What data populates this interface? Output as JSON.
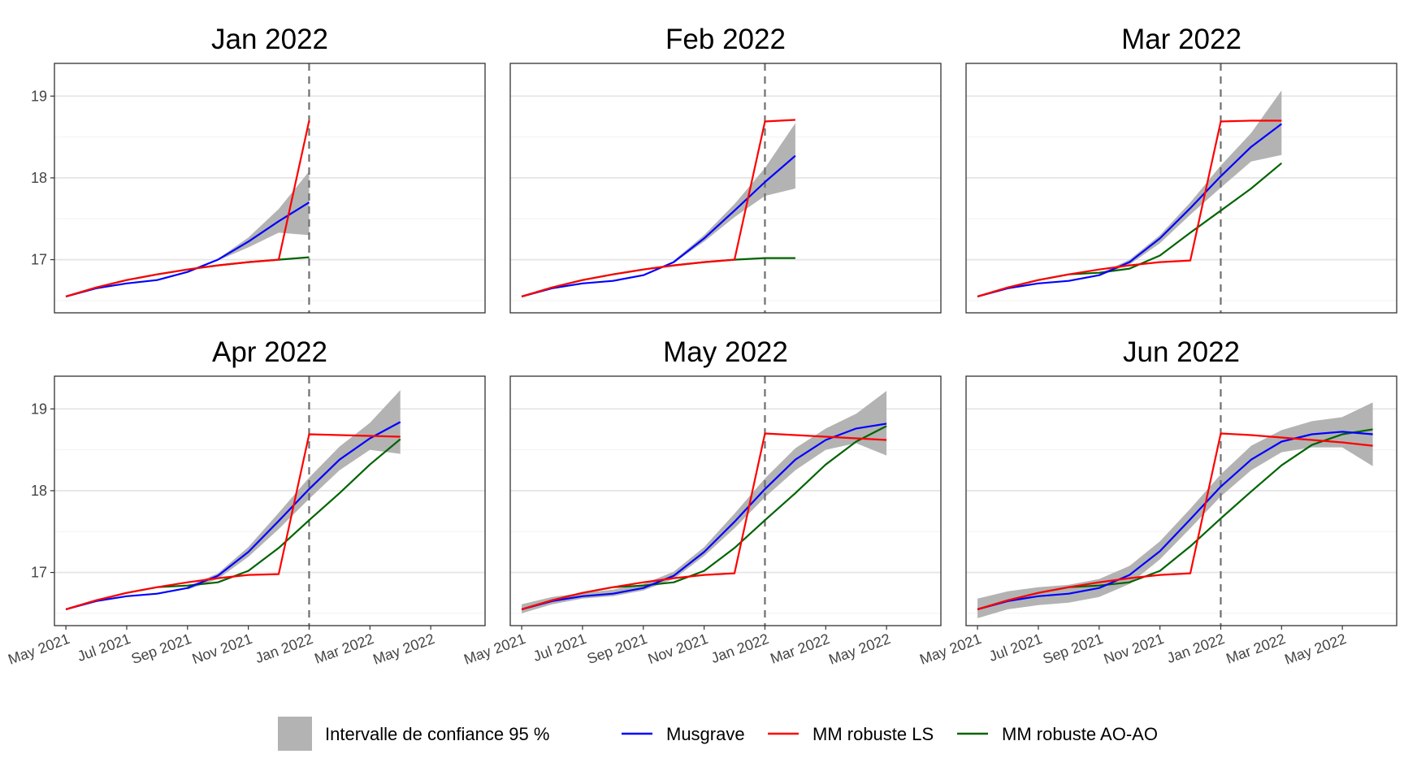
{
  "chart_data": {
    "type": "line",
    "facets": [
      "Jan 2022",
      "Feb 2022",
      "Mar 2022",
      "Apr 2022",
      "May 2022",
      "Jun 2022"
    ],
    "x_dates": [
      "2021-05",
      "2021-06",
      "2021-07",
      "2021-08",
      "2021-09",
      "2021-10",
      "2021-11",
      "2021-12",
      "2022-01",
      "2022-02",
      "2022-03",
      "2022-04",
      "2022-05",
      "2022-06"
    ],
    "x_tick_labels": [
      "May 2021",
      "Jul 2021",
      "Sep 2021",
      "Nov 2021",
      "Jan 2022",
      "Mar 2022",
      "May 2022"
    ],
    "x_tick_dates": [
      "2021-05",
      "2021-07",
      "2021-09",
      "2021-11",
      "2022-01",
      "2022-03",
      "2022-05"
    ],
    "xlim": [
      "2021-04-20",
      "2022-06-25"
    ],
    "y_ticks": [
      17,
      18,
      19
    ],
    "ylim": [
      16.35,
      19.4
    ],
    "vline_date": "2022-01",
    "grid": true,
    "legend_position": "bottom",
    "colors": {
      "Musgrave": "#0000ff",
      "MM robuste LS": "#ff0000",
      "MM robuste AO-AO": "#006400",
      "band": "#b3b3b3"
    },
    "legend": [
      {
        "key": "band",
        "label": "Intervalle de confiance 95 %"
      },
      {
        "key": "Musgrave",
        "label": "Musgrave"
      },
      {
        "key": "MM robuste LS",
        "label": "MM robuste LS"
      },
      {
        "key": "MM robuste AO-AO",
        "label": "MM robuste AO-AO"
      }
    ],
    "panels": [
      {
        "title": "Jan 2022",
        "series": [
          {
            "name": "Musgrave",
            "x": [
              "2021-05",
              "2021-06",
              "2021-07",
              "2021-08",
              "2021-09",
              "2021-10",
              "2021-11",
              "2021-12",
              "2022-01"
            ],
            "values": [
              16.55,
              16.65,
              16.71,
              16.75,
              16.85,
              17.0,
              17.22,
              17.47,
              17.7
            ]
          },
          {
            "name": "MM robuste LS",
            "x": [
              "2021-05",
              "2021-06",
              "2021-07",
              "2021-08",
              "2021-09",
              "2021-10",
              "2021-11",
              "2021-12",
              "2022-01"
            ],
            "values": [
              16.55,
              16.66,
              16.75,
              16.82,
              16.88,
              16.93,
              16.97,
              17.0,
              18.7
            ]
          },
          {
            "name": "MM robuste AO-AO",
            "x": [
              "2021-05",
              "2021-06",
              "2021-07",
              "2021-08",
              "2021-09",
              "2021-10",
              "2021-11",
              "2021-12",
              "2022-01"
            ],
            "values": [
              16.55,
              16.66,
              16.75,
              16.82,
              16.88,
              16.93,
              16.97,
              17.0,
              17.03
            ]
          }
        ],
        "band": {
          "x": [
            "2021-10",
            "2021-11",
            "2021-12",
            "2022-01"
          ],
          "lower": [
            16.99,
            17.15,
            17.33,
            17.3
          ],
          "upper": [
            17.01,
            17.27,
            17.62,
            18.08
          ]
        }
      },
      {
        "title": "Feb 2022",
        "series": [
          {
            "name": "Musgrave",
            "x": [
              "2021-05",
              "2021-06",
              "2021-07",
              "2021-08",
              "2021-09",
              "2021-10",
              "2021-11",
              "2021-12",
              "2022-01",
              "2022-02"
            ],
            "values": [
              16.55,
              16.65,
              16.71,
              16.74,
              16.81,
              16.97,
              17.26,
              17.6,
              17.95,
              18.27
            ]
          },
          {
            "name": "MM robuste LS",
            "x": [
              "2021-05",
              "2021-06",
              "2021-07",
              "2021-08",
              "2021-09",
              "2021-10",
              "2021-11",
              "2021-12",
              "2022-01",
              "2022-02"
            ],
            "values": [
              16.55,
              16.66,
              16.75,
              16.82,
              16.88,
              16.93,
              16.97,
              17.0,
              18.69,
              18.71
            ]
          },
          {
            "name": "MM robuste AO-AO",
            "x": [
              "2021-05",
              "2021-06",
              "2021-07",
              "2021-08",
              "2021-09",
              "2021-10",
              "2021-11",
              "2021-12",
              "2022-01",
              "2022-02"
            ],
            "values": [
              16.55,
              16.66,
              16.75,
              16.82,
              16.88,
              16.93,
              16.97,
              17.0,
              17.02,
              17.02
            ]
          }
        ],
        "band": {
          "x": [
            "2021-10",
            "2021-11",
            "2021-12",
            "2022-01",
            "2022-02"
          ],
          "lower": [
            16.96,
            17.22,
            17.52,
            17.78,
            17.87
          ],
          "upper": [
            16.99,
            17.3,
            17.68,
            18.12,
            18.67
          ]
        }
      },
      {
        "title": "Mar 2022",
        "series": [
          {
            "name": "Musgrave",
            "x": [
              "2021-05",
              "2021-06",
              "2021-07",
              "2021-08",
              "2021-09",
              "2021-10",
              "2021-11",
              "2021-12",
              "2022-01",
              "2022-02",
              "2022-03"
            ],
            "values": [
              16.55,
              16.65,
              16.71,
              16.74,
              16.81,
              16.97,
              17.26,
              17.63,
              18.02,
              18.38,
              18.66
            ]
          },
          {
            "name": "MM robuste LS",
            "x": [
              "2021-05",
              "2021-06",
              "2021-07",
              "2021-08",
              "2021-09",
              "2021-10",
              "2021-11",
              "2021-12",
              "2022-01",
              "2022-02",
              "2022-03"
            ],
            "values": [
              16.55,
              16.66,
              16.75,
              16.82,
              16.88,
              16.93,
              16.97,
              16.99,
              18.69,
              18.7,
              18.7
            ]
          },
          {
            "name": "MM robuste AO-AO",
            "x": [
              "2021-05",
              "2021-06",
              "2021-07",
              "2021-08",
              "2021-09",
              "2021-10",
              "2021-11",
              "2021-12",
              "2022-01",
              "2022-02",
              "2022-03"
            ],
            "values": [
              16.55,
              16.66,
              16.75,
              16.82,
              16.84,
              16.89,
              17.05,
              17.33,
              17.6,
              17.87,
              18.18
            ]
          }
        ],
        "band": {
          "x": [
            "2021-09",
            "2021-10",
            "2021-11",
            "2021-12",
            "2022-01",
            "2022-02",
            "2022-03"
          ],
          "lower": [
            16.8,
            16.94,
            17.2,
            17.55,
            17.88,
            18.2,
            18.28
          ],
          "upper": [
            16.83,
            17.0,
            17.3,
            17.7,
            18.15,
            18.55,
            19.07
          ]
        }
      },
      {
        "title": "Apr 2022",
        "series": [
          {
            "name": "Musgrave",
            "x": [
              "2021-05",
              "2021-06",
              "2021-07",
              "2021-08",
              "2021-09",
              "2021-10",
              "2021-11",
              "2021-12",
              "2022-01",
              "2022-02",
              "2022-03",
              "2022-04"
            ],
            "values": [
              16.55,
              16.65,
              16.71,
              16.74,
              16.81,
              16.96,
              17.25,
              17.63,
              18.02,
              18.38,
              18.64,
              18.84
            ]
          },
          {
            "name": "MM robuste LS",
            "x": [
              "2021-05",
              "2021-06",
              "2021-07",
              "2021-08",
              "2021-09",
              "2021-10",
              "2021-11",
              "2021-12",
              "2022-01",
              "2022-02",
              "2022-03",
              "2022-04"
            ],
            "values": [
              16.55,
              16.66,
              16.75,
              16.82,
              16.88,
              16.93,
              16.97,
              16.98,
              18.69,
              18.68,
              18.67,
              18.66
            ]
          },
          {
            "name": "MM robuste AO-AO",
            "x": [
              "2021-05",
              "2021-06",
              "2021-07",
              "2021-08",
              "2021-09",
              "2021-10",
              "2021-11",
              "2021-12",
              "2022-01",
              "2022-02",
              "2022-03",
              "2022-04"
            ],
            "values": [
              16.55,
              16.66,
              16.75,
              16.82,
              16.84,
              16.88,
              17.02,
              17.3,
              17.64,
              17.97,
              18.32,
              18.63
            ]
          }
        ],
        "band": {
          "x": [
            "2021-09",
            "2021-10",
            "2021-11",
            "2021-12",
            "2022-01",
            "2022-02",
            "2022-03",
            "2022-04"
          ],
          "lower": [
            16.79,
            16.92,
            17.19,
            17.53,
            17.9,
            18.25,
            18.5,
            18.45
          ],
          "upper": [
            16.83,
            16.99,
            17.31,
            17.73,
            18.16,
            18.54,
            18.83,
            19.23
          ]
        }
      },
      {
        "title": "May 2022",
        "series": [
          {
            "name": "Musgrave",
            "x": [
              "2021-05",
              "2021-06",
              "2021-07",
              "2021-08",
              "2021-09",
              "2021-10",
              "2021-11",
              "2021-12",
              "2022-01",
              "2022-02",
              "2022-03",
              "2022-04",
              "2022-05"
            ],
            "values": [
              16.55,
              16.65,
              16.71,
              16.74,
              16.81,
              16.96,
              17.25,
              17.62,
              18.02,
              18.38,
              18.62,
              18.76,
              18.82
            ]
          },
          {
            "name": "MM robuste LS",
            "x": [
              "2021-05",
              "2021-06",
              "2021-07",
              "2021-08",
              "2021-09",
              "2021-10",
              "2021-11",
              "2021-12",
              "2022-01",
              "2022-02",
              "2022-03",
              "2022-04",
              "2022-05"
            ],
            "values": [
              16.55,
              16.66,
              16.75,
              16.82,
              16.88,
              16.93,
              16.97,
              16.99,
              18.7,
              18.68,
              18.66,
              18.64,
              18.62
            ]
          },
          {
            "name": "MM robuste AO-AO",
            "x": [
              "2021-05",
              "2021-06",
              "2021-07",
              "2021-08",
              "2021-09",
              "2021-10",
              "2021-11",
              "2021-12",
              "2022-01",
              "2022-02",
              "2022-03",
              "2022-04",
              "2022-05"
            ],
            "values": [
              16.55,
              16.66,
              16.75,
              16.82,
              16.84,
              16.88,
              17.02,
              17.3,
              17.64,
              17.97,
              18.32,
              18.6,
              18.79
            ]
          }
        ],
        "band": {
          "x": [
            "2021-05",
            "2021-06",
            "2021-07",
            "2021-08",
            "2021-09",
            "2021-10",
            "2021-11",
            "2021-12",
            "2022-01",
            "2022-02",
            "2022-03",
            "2022-04",
            "2022-05"
          ],
          "lower": [
            16.5,
            16.61,
            16.68,
            16.71,
            16.78,
            16.92,
            17.2,
            17.54,
            17.92,
            18.25,
            18.5,
            18.58,
            18.43
          ],
          "upper": [
            16.61,
            16.7,
            16.75,
            16.79,
            16.86,
            17.01,
            17.31,
            17.72,
            18.15,
            18.52,
            18.76,
            18.94,
            19.22
          ]
        }
      },
      {
        "title": "Jun 2022",
        "series": [
          {
            "name": "Musgrave",
            "x": [
              "2021-05",
              "2021-06",
              "2021-07",
              "2021-08",
              "2021-09",
              "2021-10",
              "2021-11",
              "2021-12",
              "2022-01",
              "2022-02",
              "2022-03",
              "2022-04",
              "2022-05",
              "2022-06"
            ],
            "values": [
              16.55,
              16.65,
              16.71,
              16.74,
              16.81,
              16.97,
              17.26,
              17.65,
              18.05,
              18.38,
              18.6,
              18.69,
              18.72,
              18.69
            ]
          },
          {
            "name": "MM robuste LS",
            "x": [
              "2021-05",
              "2021-06",
              "2021-07",
              "2021-08",
              "2021-09",
              "2021-10",
              "2021-11",
              "2021-12",
              "2022-01",
              "2022-02",
              "2022-03",
              "2022-04",
              "2022-05",
              "2022-06"
            ],
            "values": [
              16.55,
              16.66,
              16.75,
              16.82,
              16.88,
              16.93,
              16.97,
              16.99,
              18.7,
              18.68,
              18.65,
              18.62,
              18.59,
              18.55
            ]
          },
          {
            "name": "MM robuste AO-AO",
            "x": [
              "2021-05",
              "2021-06",
              "2021-07",
              "2021-08",
              "2021-09",
              "2021-10",
              "2021-11",
              "2021-12",
              "2022-01",
              "2022-02",
              "2022-03",
              "2022-04",
              "2022-05",
              "2022-06"
            ],
            "values": [
              16.55,
              16.66,
              16.75,
              16.82,
              16.84,
              16.88,
              17.02,
              17.32,
              17.66,
              17.99,
              18.31,
              18.56,
              18.69,
              18.75
            ]
          }
        ],
        "band": {
          "x": [
            "2021-05",
            "2021-06",
            "2021-07",
            "2021-08",
            "2021-09",
            "2021-10",
            "2021-11",
            "2021-12",
            "2022-01",
            "2022-02",
            "2022-03",
            "2022-04",
            "2022-05",
            "2022-06"
          ],
          "lower": [
            16.44,
            16.55,
            16.6,
            16.63,
            16.7,
            16.86,
            17.16,
            17.54,
            17.93,
            18.25,
            18.47,
            18.53,
            18.53,
            18.3
          ],
          "upper": [
            16.68,
            16.77,
            16.82,
            16.85,
            16.92,
            17.08,
            17.38,
            17.78,
            18.2,
            18.55,
            18.74,
            18.85,
            18.9,
            19.08
          ]
        }
      }
    ]
  }
}
